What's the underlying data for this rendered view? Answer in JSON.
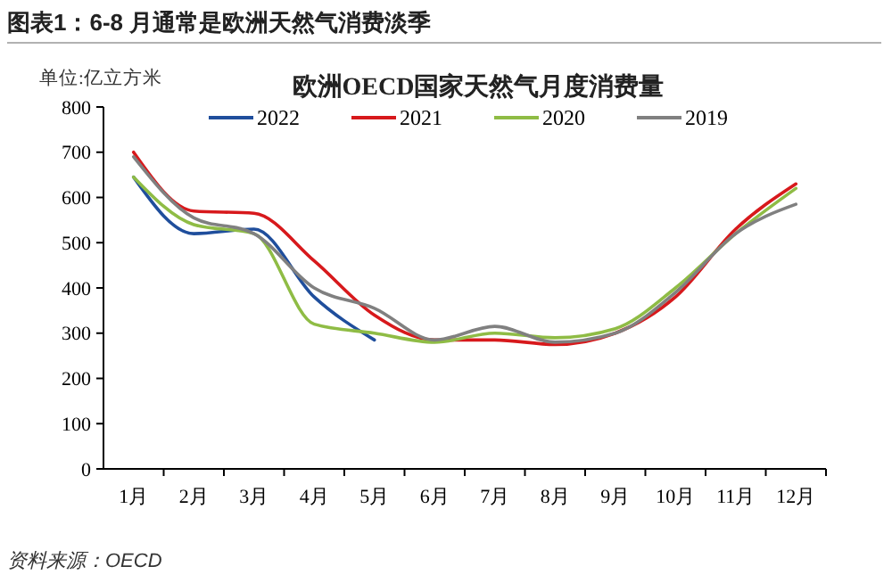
{
  "chart_data": {
    "type": "line",
    "title": "图表1：6-8 月通常是欧洲天然气消费淡季",
    "subtitle": "欧洲OECD国家天然气月度消费量",
    "ylabel": "单位:亿立方米",
    "categories": [
      "1月",
      "2月",
      "3月",
      "4月",
      "5月",
      "6月",
      "7月",
      "8月",
      "9月",
      "10月",
      "11月",
      "12月"
    ],
    "series": [
      {
        "name": "2022",
        "color": "#1f4e9c",
        "values": [
          645,
          520,
          530,
          380,
          285,
          null,
          null,
          null,
          null,
          null,
          null,
          null
        ]
      },
      {
        "name": "2021",
        "color": "#d7191c",
        "values": [
          700,
          570,
          565,
          460,
          340,
          285,
          285,
          275,
          300,
          380,
          530,
          630
        ]
      },
      {
        "name": "2020",
        "color": "#8fbc45",
        "values": [
          645,
          540,
          520,
          320,
          300,
          280,
          300,
          290,
          310,
          400,
          520,
          620
        ]
      },
      {
        "name": "2019",
        "color": "#808080",
        "values": [
          690,
          555,
          520,
          400,
          355,
          285,
          315,
          280,
          300,
          390,
          520,
          585
        ]
      }
    ],
    "ylim": [
      0,
      800
    ],
    "yticks": [
      0,
      100,
      200,
      300,
      400,
      500,
      600,
      700,
      800
    ],
    "legend": "top",
    "grid": false,
    "annotations": [
      "资料来源：OECD"
    ]
  }
}
